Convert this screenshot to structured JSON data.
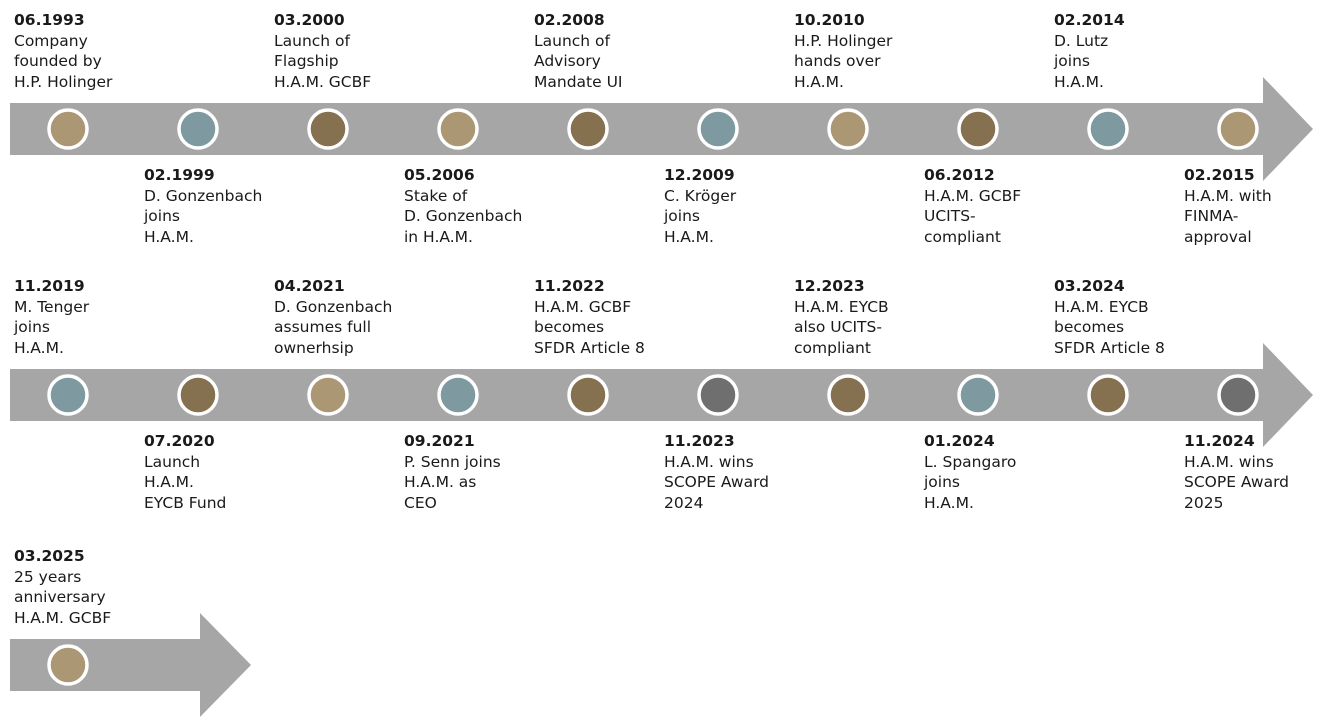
{
  "colors": {
    "arrow": "#a6a6a6",
    "tan": "#ab9774",
    "teal": "#7e9aa0",
    "brown": "#85704f",
    "grey": "#6f6f6f",
    "ring": "#ffffff"
  },
  "rows": [
    {
      "dots": [
        "tan",
        "teal",
        "brown",
        "tan",
        "brown",
        "teal",
        "tan",
        "brown",
        "teal",
        "tan"
      ],
      "events": [
        {
          "date": "06.1993",
          "text": "Company\nfounded by\nH.P. Holinger"
        },
        {
          "date": "02.1999",
          "text": "D. Gonzenbach\njoins\nH.A.M."
        },
        {
          "date": "03.2000",
          "text": "Launch of\nFlagship\nH.A.M. GCBF"
        },
        {
          "date": "05.2006",
          "text": "Stake of\nD. Gonzenbach\nin H.A.M."
        },
        {
          "date": "02.2008",
          "text": "Launch of\nAdvisory\nMandate UI"
        },
        {
          "date": "12.2009",
          "text": "C. Kröger\njoins\nH.A.M."
        },
        {
          "date": "10.2010",
          "text": "H.P. Holinger\nhands over\nH.A.M."
        },
        {
          "date": "06.2012",
          "text": "H.A.M. GCBF\nUCITS-\ncompliant"
        },
        {
          "date": "02.2014",
          "text": "D. Lutz\njoins\nH.A.M."
        },
        {
          "date": "02.2015",
          "text": "H.A.M. with\nFINMA-\napproval"
        }
      ]
    },
    {
      "dots": [
        "teal",
        "brown",
        "tan",
        "teal",
        "brown",
        "grey",
        "brown",
        "teal",
        "brown",
        "grey"
      ],
      "events": [
        {
          "date": "11.2019",
          "text": "M. Tenger\njoins\nH.A.M."
        },
        {
          "date": "07.2020",
          "text": "Launch\nH.A.M.\nEYCB Fund"
        },
        {
          "date": "04.2021",
          "text": "D. Gonzenbach\nassumes full\nownerhsip"
        },
        {
          "date": "09.2021",
          "text": "P. Senn joins\nH.A.M. as\nCEO"
        },
        {
          "date": "11.2022",
          "text": "H.A.M. GCBF\nbecomes\nSFDR Article 8"
        },
        {
          "date": "11.2023",
          "text": "H.A.M. wins\nSCOPE Award\n2024"
        },
        {
          "date": "12.2023",
          "text": "H.A.M. EYCB\nalso UCITS-\ncompliant"
        },
        {
          "date": "01.2024",
          "text": "L. Spangaro\njoins\nH.A.M."
        },
        {
          "date": "03.2024",
          "text": "H.A.M. EYCB\nbecomes\nSFDR Article 8"
        },
        {
          "date": "11.2024",
          "text": "H.A.M. wins\nSCOPE Award\n2025"
        }
      ]
    },
    {
      "dots": [
        "tan"
      ],
      "events": [
        {
          "date": "03.2025",
          "text": "25 years\nanniversary\nH.A.M. GCBF"
        }
      ]
    }
  ]
}
